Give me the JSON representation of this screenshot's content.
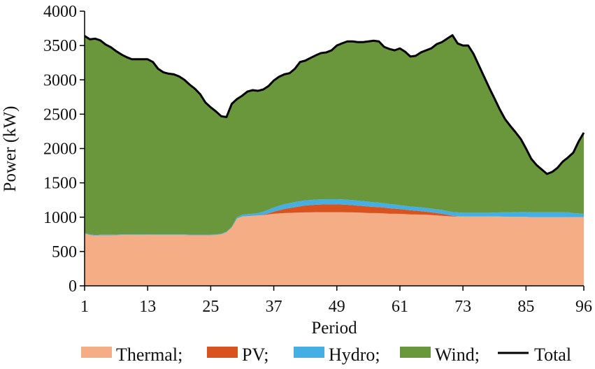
{
  "chart_data": {
    "type": "area",
    "xlabel": "Period",
    "ylabel": "Power (kW)",
    "xlim": [
      1,
      96
    ],
    "ylim": [
      0,
      4000
    ],
    "x_ticks": [
      1,
      13,
      25,
      37,
      49,
      61,
      73,
      85,
      96
    ],
    "y_ticks": [
      0,
      500,
      1000,
      1500,
      2000,
      2500,
      3000,
      3500,
      4000
    ],
    "stacked": true,
    "legend_position": "bottom",
    "grid": false,
    "legend": {
      "thermal_label": "Thermal;",
      "pv_label": "PV;",
      "hydro_label": "Hydro;",
      "wind_label": "Wind;",
      "total_label": "Total"
    },
    "x": [
      1,
      2,
      3,
      4,
      5,
      6,
      7,
      8,
      9,
      10,
      11,
      12,
      13,
      14,
      15,
      16,
      17,
      18,
      19,
      20,
      21,
      22,
      23,
      24,
      25,
      26,
      27,
      28,
      29,
      30,
      31,
      32,
      33,
      34,
      35,
      36,
      37,
      38,
      39,
      40,
      41,
      42,
      43,
      44,
      45,
      46,
      47,
      48,
      49,
      50,
      51,
      52,
      53,
      54,
      55,
      56,
      57,
      58,
      59,
      60,
      61,
      62,
      63,
      64,
      65,
      66,
      67,
      68,
      69,
      70,
      71,
      72,
      73,
      74,
      75,
      76,
      77,
      78,
      79,
      80,
      81,
      82,
      83,
      84,
      85,
      86,
      87,
      88,
      89,
      90,
      91,
      92,
      93,
      94,
      95,
      96
    ],
    "series": [
      {
        "name": "Thermal",
        "color": "#F4AD85",
        "values": [
          760,
          740,
          730,
          735,
          735,
          735,
          738,
          740,
          742,
          740,
          740,
          740,
          742,
          740,
          740,
          740,
          740,
          740,
          740,
          740,
          738,
          738,
          738,
          738,
          738,
          740,
          750,
          780,
          850,
          980,
          1010,
          1015,
          1020,
          1025,
          1030,
          1040,
          1050,
          1055,
          1060,
          1062,
          1065,
          1068,
          1070,
          1070,
          1072,
          1072,
          1072,
          1072,
          1072,
          1072,
          1070,
          1070,
          1068,
          1065,
          1060,
          1060,
          1058,
          1055,
          1050,
          1050,
          1048,
          1045,
          1040,
          1040,
          1038,
          1035,
          1030,
          1025,
          1020,
          1015,
          1010,
          1010,
          1010,
          1010,
          1010,
          1010,
          1010,
          1010,
          1010,
          1010,
          1008,
          1005,
          1005,
          1005,
          1005,
          1000,
          1000,
          1000,
          1000,
          1000,
          1000,
          1000,
          1000,
          1000,
          1000,
          1000
        ]
      },
      {
        "name": "PV",
        "color": "#D9531E",
        "values": [
          0,
          0,
          0,
          0,
          0,
          0,
          0,
          0,
          0,
          0,
          0,
          0,
          0,
          0,
          0,
          0,
          0,
          0,
          0,
          0,
          0,
          0,
          0,
          0,
          0,
          0,
          0,
          0,
          0,
          0,
          0,
          0,
          0,
          0,
          5,
          15,
          30,
          45,
          60,
          70,
          80,
          90,
          100,
          105,
          110,
          112,
          115,
          115,
          115,
          112,
          110,
          105,
          100,
          98,
          95,
          90,
          88,
          85,
          80,
          75,
          70,
          65,
          60,
          55,
          50,
          45,
          40,
          35,
          30,
          20,
          10,
          5,
          0,
          0,
          0,
          0,
          0,
          0,
          0,
          0,
          0,
          0,
          0,
          0,
          0,
          0,
          0,
          0,
          0,
          0,
          0,
          0,
          0,
          0,
          0,
          0
        ]
      },
      {
        "name": "Hydro",
        "color": "#45AEE2",
        "values": [
          10,
          10,
          10,
          10,
          10,
          10,
          10,
          10,
          10,
          10,
          10,
          10,
          10,
          10,
          10,
          10,
          10,
          10,
          10,
          10,
          10,
          10,
          10,
          10,
          10,
          10,
          10,
          10,
          10,
          20,
          25,
          30,
          30,
          35,
          45,
          55,
          60,
          65,
          70,
          72,
          75,
          75,
          75,
          75,
          75,
          75,
          75,
          75,
          75,
          75,
          75,
          75,
          73,
          72,
          70,
          68,
          66,
          64,
          62,
          60,
          58,
          56,
          55,
          55,
          55,
          55,
          55,
          55,
          55,
          55,
          55,
          55,
          55,
          55,
          55,
          55,
          55,
          55,
          58,
          60,
          62,
          65,
          68,
          70,
          70,
          70,
          70,
          70,
          70,
          70,
          70,
          70,
          70,
          60,
          55,
          50
        ]
      },
      {
        "name": "Wind",
        "color": "#6A973B",
        "values": [
          2870,
          2840,
          2860,
          2830,
          2770,
          2730,
          2670,
          2620,
          2578,
          2550,
          2550,
          2550,
          2548,
          2510,
          2410,
          2360,
          2340,
          2330,
          2300,
          2250,
          2182,
          2122,
          2042,
          1922,
          1852,
          1790,
          1710,
          1668,
          1790,
          1720,
          1735,
          1785,
          1800,
          1780,
          1780,
          1800,
          1830,
          1880,
          1880,
          1893,
          1940,
          2027,
          2035,
          2070,
          2100,
          2131,
          2138,
          2168,
          2238,
          2273,
          2305,
          2310,
          2309,
          2313,
          2335,
          2352,
          2348,
          2276,
          2258,
          2245,
          2282,
          2244,
          2185,
          2200,
          2257,
          2295,
          2335,
          2405,
          2445,
          2510,
          2575,
          2460,
          2435,
          2435,
          2315,
          2150,
          1985,
          1820,
          1662,
          1500,
          1360,
          1260,
          1165,
          1065,
          925,
          780,
          690,
          625,
          560,
          590,
          650,
          740,
          800,
          880,
          1045,
          1180
        ]
      }
    ],
    "total": {
      "name": "Total",
      "color": "#000000",
      "values": [
        3640,
        3590,
        3600,
        3575,
        3515,
        3475,
        3418,
        3370,
        3330,
        3300,
        3300,
        3300,
        3300,
        3260,
        3160,
        3110,
        3090,
        3080,
        3050,
        3000,
        2930,
        2870,
        2790,
        2670,
        2600,
        2540,
        2470,
        2458,
        2650,
        2720,
        2770,
        2830,
        2850,
        2840,
        2860,
        2910,
        2990,
        3045,
        3080,
        3097,
        3160,
        3260,
        3280,
        3320,
        3357,
        3390,
        3400,
        3430,
        3500,
        3532,
        3560,
        3560,
        3550,
        3550,
        3560,
        3570,
        3560,
        3480,
        3450,
        3430,
        3458,
        3410,
        3340,
        3350,
        3400,
        3430,
        3460,
        3520,
        3550,
        3600,
        3650,
        3530,
        3500,
        3500,
        3380,
        3215,
        3050,
        2885,
        2730,
        2570,
        2430,
        2330,
        2238,
        2140,
        2000,
        1850,
        1760,
        1695,
        1630,
        1660,
        1720,
        1810,
        1870,
        1940,
        2100,
        2230
      ]
    }
  }
}
